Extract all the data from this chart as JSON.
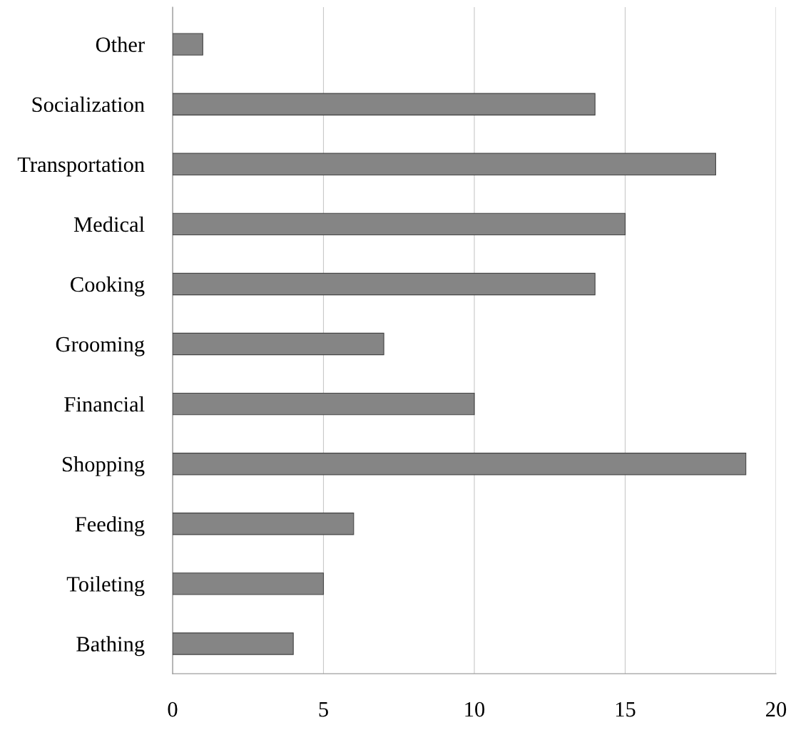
{
  "chart_data": {
    "type": "bar",
    "orientation": "horizontal",
    "categories": [
      "Other",
      "Socialization",
      "Transportation",
      "Medical",
      "Cooking",
      "Grooming",
      "Financial",
      "Shopping",
      "Feeding",
      "Toileting",
      "Bathing"
    ],
    "values": [
      1,
      14,
      18,
      15,
      14,
      7,
      10,
      19,
      6,
      5,
      4
    ],
    "color": "#858585",
    "xlim": [
      0,
      20
    ],
    "xticks": [
      0,
      5,
      10,
      15,
      20
    ],
    "grid": "x"
  }
}
